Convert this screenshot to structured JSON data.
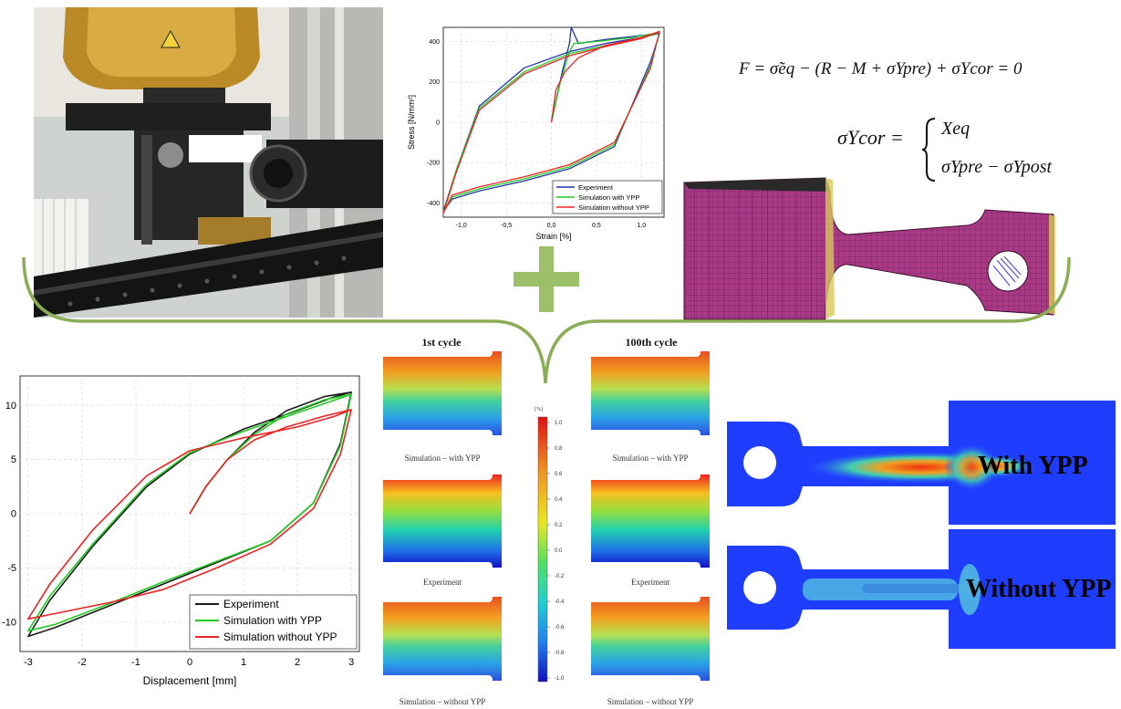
{
  "colors": {
    "plus": "#9cc06a",
    "brace": "#8aad55",
    "experiment": "#1a1a1a",
    "experiment_top": "#2233aa",
    "with_ypp": "#22cc22",
    "without_ypp": "#ee2222",
    "mesh": "#b0408a",
    "field_blue": "#1f3dff"
  },
  "icons": {
    "plus": "plus-icon",
    "brace": "curly-brace"
  },
  "photo": {
    "name": "test-machine-photo"
  },
  "formula": {
    "line1": "F = σ̃eq − (R − M + σYpre) + σYcor = 0",
    "line2_lhs": "σYcor =",
    "case1": "Xeq",
    "case2": "σYpre − σYpost"
  },
  "top_chart": {
    "ylabel": "Stress [N/mm²]",
    "xlabel": "Strain [%]",
    "x_ticks": [
      "-1,0",
      "-0,5",
      "0,0",
      "0,5",
      "1,0"
    ],
    "y_ticks": [
      "400",
      "200",
      "0",
      "-200",
      "-400"
    ],
    "legend": [
      "Experiment",
      "Simulation with YPP",
      "Simulation without YPP"
    ]
  },
  "bottom_chart": {
    "xlabel": "Displacement [mm]",
    "x_ticks": [
      "-3",
      "-2",
      "-1",
      "0",
      "1",
      "2",
      "3"
    ],
    "y_ticks": [
      "10",
      "5",
      "0",
      "-5",
      "-10"
    ],
    "legend": [
      "Experiment",
      "Simulation with YPP",
      "Simulation without YPP"
    ]
  },
  "contours": {
    "cycle1_title": "1st cycle",
    "cycle100_title": "100th cycle",
    "caption_with": "Simulation – with YPP",
    "caption_exp": "Experiment",
    "caption_without": "Simulation – without YPP",
    "colorbar_unit": "[%]",
    "colorbar_ticks": [
      "1.0",
      "0.8",
      "0.6",
      "0.4",
      "0.2",
      "0.0",
      "-0.2",
      "-0.4",
      "-0.6",
      "-0.8",
      "-1.0"
    ]
  },
  "fields": {
    "with_label": "With YPP",
    "without_label": "Without YPP"
  },
  "chart_data": [
    {
      "type": "line",
      "xlabel": "Strain [%]",
      "ylabel": "Stress [N/mm²]",
      "xlim": [
        -1.2,
        1.25
      ],
      "ylim": [
        -470,
        470
      ],
      "series": [
        {
          "name": "Experiment",
          "x": [
            0.0,
            0.12,
            0.2,
            0.22,
            0.3,
            0.6,
            1.0,
            1.2,
            1.1,
            0.7,
            0.2,
            -0.3,
            -0.8,
            -1.1,
            -1.2,
            -1.05,
            -0.8,
            -0.3,
            0.2,
            0.6,
            1.0,
            1.2
          ],
          "y": [
            0,
            250,
            390,
            470,
            390,
            410,
            430,
            440,
            300,
            -120,
            -230,
            -290,
            -340,
            -380,
            -440,
            -230,
            80,
            270,
            350,
            390,
            420,
            440
          ]
        },
        {
          "name": "Simulation with YPP",
          "x": [
            0.0,
            0.1,
            0.2,
            0.25,
            0.5,
            0.9,
            1.2,
            1.1,
            0.7,
            0.2,
            -0.3,
            -0.8,
            -1.1,
            -1.2,
            -1.05,
            -0.8,
            -0.3,
            0.2,
            0.6,
            1.0,
            1.2
          ],
          "y": [
            0,
            200,
            350,
            390,
            400,
            420,
            445,
            280,
            -110,
            -220,
            -280,
            -330,
            -370,
            -445,
            -230,
            70,
            250,
            340,
            380,
            415,
            445
          ]
        },
        {
          "name": "Simulation without YPP",
          "x": [
            0.0,
            0.05,
            0.15,
            0.3,
            0.6,
            1.0,
            1.2,
            1.1,
            0.7,
            0.2,
            -0.3,
            -0.8,
            -1.1,
            -1.2,
            -1.05,
            -0.8,
            -0.3,
            0.2,
            0.6,
            1.0,
            1.2
          ],
          "y": [
            0,
            160,
            250,
            320,
            380,
            420,
            450,
            270,
            -100,
            -210,
            -270,
            -320,
            -360,
            -450,
            -240,
            60,
            240,
            330,
            375,
            415,
            450
          ]
        }
      ]
    },
    {
      "type": "line",
      "xlabel": "Displacement [mm]",
      "ylabel": "",
      "xlim": [
        -3.15,
        3.15
      ],
      "ylim": [
        -12.7,
        12.7
      ],
      "series": [
        {
          "name": "Experiment",
          "x": [
            0.0,
            0.3,
            0.7,
            1.2,
            1.8,
            2.5,
            3.0,
            2.8,
            2.3,
            1.5,
            0.5,
            -0.5,
            -1.5,
            -2.5,
            -3.0,
            -2.6,
            -1.8,
            -0.8,
            0.0,
            1.0,
            2.0,
            2.7,
            3.0
          ],
          "y": [
            0,
            2.5,
            5.0,
            7.5,
            9.5,
            10.8,
            11.2,
            6.5,
            1.0,
            -2.5,
            -4.5,
            -6.5,
            -8.5,
            -10.5,
            -11.3,
            -8.0,
            -3.0,
            2.5,
            5.5,
            7.8,
            9.5,
            10.8,
            11.2
          ]
        },
        {
          "name": "Simulation with YPP",
          "x": [
            0.0,
            0.3,
            0.7,
            1.2,
            1.8,
            2.5,
            3.0,
            2.8,
            2.3,
            1.5,
            0.5,
            -0.5,
            -1.5,
            -2.5,
            -3.0,
            -2.6,
            -1.8,
            -0.8,
            0.0,
            1.0,
            2.0,
            2.7,
            3.0
          ],
          "y": [
            0,
            2.5,
            5.0,
            7.3,
            9.2,
            10.5,
            11.0,
            6.3,
            1.0,
            -2.5,
            -4.4,
            -6.3,
            -8.3,
            -10.2,
            -10.8,
            -7.6,
            -2.8,
            2.7,
            5.6,
            7.6,
            9.3,
            10.5,
            11.0
          ]
        },
        {
          "name": "Simulation without YPP",
          "x": [
            0.0,
            0.3,
            0.7,
            1.2,
            1.8,
            2.5,
            3.0,
            2.8,
            2.3,
            1.5,
            0.5,
            -0.5,
            -1.5,
            -2.5,
            -3.0,
            -2.6,
            -1.8,
            -0.8,
            0.0,
            1.0,
            2.0,
            2.7,
            3.0
          ],
          "y": [
            0,
            2.5,
            5.0,
            6.8,
            8.0,
            9.0,
            9.6,
            5.5,
            0.5,
            -2.8,
            -5.0,
            -7.0,
            -8.2,
            -9.2,
            -9.7,
            -6.5,
            -1.5,
            3.5,
            5.8,
            7.0,
            8.0,
            9.0,
            9.6
          ]
        }
      ]
    }
  ]
}
